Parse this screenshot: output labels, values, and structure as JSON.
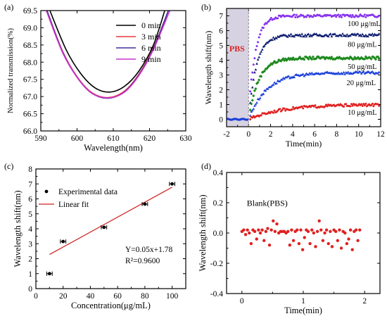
{
  "chart_data": [
    {
      "panel": "(a)",
      "type": "line",
      "xlabel": "Wavelength(nm)",
      "ylabel": "Normalized transmission(%)",
      "xlim": [
        590,
        630
      ],
      "ylim": [
        66.0,
        69.5
      ],
      "xticks": [
        "590",
        "600",
        "610",
        "620",
        "630"
      ],
      "yticks": [
        "66.0",
        "66.5",
        "67.0",
        "67.5",
        "68.0",
        "68.5",
        "69.0",
        "69.5"
      ],
      "legend": "top-right",
      "series": [
        {
          "name": "0 min",
          "color": "#000000",
          "x": [
            592.5,
            597,
            601,
            605,
            609,
            613,
            617,
            621,
            624.2
          ],
          "y": [
            69.5,
            68.36,
            67.67,
            67.25,
            67.13,
            67.29,
            67.73,
            68.48,
            69.5
          ]
        },
        {
          "name": "3 min",
          "color": "#e8383c",
          "x": [
            591.7,
            596,
            600,
            604,
            608.5,
            613,
            617,
            621,
            625.2
          ],
          "y": [
            69.5,
            68.32,
            67.58,
            67.12,
            66.97,
            67.15,
            67.64,
            68.4,
            69.5
          ]
        },
        {
          "name": "6 min",
          "color": "#3a2ea0",
          "x": [
            591.7,
            596,
            600,
            604,
            608.5,
            613,
            617,
            621,
            625.2
          ],
          "y": [
            69.5,
            68.3,
            67.56,
            67.1,
            66.95,
            67.13,
            67.62,
            68.38,
            69.5
          ]
        },
        {
          "name": "9 min",
          "color": "#cc33cc",
          "x": [
            591.5,
            596,
            600,
            604,
            608.5,
            613,
            617,
            621,
            625.6
          ],
          "y": [
            69.5,
            68.28,
            67.56,
            67.1,
            66.96,
            67.12,
            67.6,
            68.35,
            69.5
          ]
        }
      ]
    },
    {
      "panel": "(b)",
      "type": "scatter",
      "xlabel": "Time(min)",
      "ylabel": "Wavelength shift(nm)",
      "xlim": [
        -2,
        12
      ],
      "ylim": [
        -0.5,
        7.5
      ],
      "xticks": [
        "-2",
        "0",
        "2",
        "4",
        "6",
        "8",
        "10",
        "12"
      ],
      "yticks": [
        "0",
        "1",
        "2",
        "3",
        "4",
        "5",
        "6",
        "7"
      ],
      "annotation": "PBS",
      "shaded_region": [
        -2,
        0
      ],
      "series": [
        {
          "name": "100 μg/mL",
          "color": "#8833ee",
          "final": 7.0,
          "tau": 0.6
        },
        {
          "name": "80 μg/mL",
          "color": "#0a1a6e",
          "final": 5.7,
          "tau": 0.7
        },
        {
          "name": "50 μg/mL",
          "color": "#1e8a1e",
          "final": 4.15,
          "tau": 0.9
        },
        {
          "name": "20 μg/mL",
          "color": "#1a3fd8",
          "final": 3.15,
          "tau": 1.6
        },
        {
          "name": "10 μg/mL",
          "color": "#e02020",
          "final": 1.0,
          "tau": 3.0
        }
      ]
    },
    {
      "panel": "(c)",
      "type": "scatter",
      "xlabel": "Concentration(μg/mL)",
      "ylabel": "Wavelength shift(nm)",
      "xlim": [
        0,
        110
      ],
      "ylim": [
        0,
        8
      ],
      "xticks": [
        "0",
        "20",
        "40",
        "60",
        "80",
        "100"
      ],
      "yticks": [
        "0",
        "1",
        "2",
        "3",
        "4",
        "5",
        "6",
        "7",
        "8"
      ],
      "legend": [
        "Experimental data",
        "Linear fit"
      ],
      "points": {
        "x": [
          10,
          20,
          50,
          80,
          100
        ],
        "y": [
          1.0,
          3.15,
          4.1,
          5.65,
          7.0
        ],
        "xerr": 2
      },
      "fit": {
        "slope": 0.05,
        "intercept": 1.78,
        "x": [
          10,
          100
        ],
        "color": "#cc2222"
      },
      "equation": "Y=0.05x+1.78",
      "r2": "R²=0.9600"
    },
    {
      "panel": "(d)",
      "type": "scatter",
      "xlabel": "Time(min)",
      "ylabel": "Wavelength shift(nm)",
      "xlim": [
        -0.25,
        2.25
      ],
      "ylim": [
        -0.4,
        0.4
      ],
      "xticks": [
        "0",
        "1",
        "2"
      ],
      "yticks": [
        "-0.4",
        "-0.2",
        "0.0",
        "0.2",
        "0.4"
      ],
      "title": "Blank(PBS)",
      "color": "#e02020",
      "points": {
        "x": [
          0.0,
          0.03,
          0.06,
          0.09,
          0.12,
          0.15,
          0.18,
          0.21,
          0.24,
          0.27,
          0.3,
          0.33,
          0.36,
          0.39,
          0.42,
          0.45,
          0.48,
          0.51,
          0.54,
          0.57,
          0.6,
          0.63,
          0.66,
          0.69,
          0.72,
          0.75,
          0.78,
          0.81,
          0.84,
          0.87,
          0.9,
          0.93,
          0.96,
          0.99,
          1.02,
          1.05,
          1.08,
          1.11,
          1.14,
          1.17,
          1.2,
          1.23,
          1.26,
          1.29,
          1.32,
          1.35,
          1.38,
          1.41,
          1.44,
          1.47,
          1.5,
          1.53,
          1.56,
          1.59,
          1.62,
          1.65,
          1.68,
          1.71,
          1.74,
          1.77,
          1.8,
          1.83,
          1.86,
          1.89,
          1.92
        ],
        "y": [
          0.01,
          0.02,
          -0.01,
          0.02,
          0.0,
          -0.07,
          0.02,
          0.01,
          -0.04,
          0.02,
          0.0,
          0.02,
          -0.05,
          0.01,
          0.03,
          -0.08,
          0.02,
          0.08,
          0.01,
          0.06,
          0.0,
          0.01,
          0.01,
          0.01,
          0.0,
          0.01,
          -0.08,
          0.02,
          -0.05,
          0.01,
          0.02,
          -0.07,
          0.02,
          -0.11,
          -0.03,
          0.02,
          0.01,
          -0.07,
          0.02,
          0.0,
          -0.09,
          0.01,
          0.08,
          0.02,
          -0.05,
          0.0,
          0.02,
          -0.07,
          0.01,
          -0.09,
          0.02,
          0.01,
          -0.05,
          0.02,
          -0.1,
          0.01,
          0.0,
          -0.07,
          -0.04,
          0.02,
          -0.11,
          0.01,
          0.02,
          -0.05,
          0.02
        ]
      }
    }
  ]
}
